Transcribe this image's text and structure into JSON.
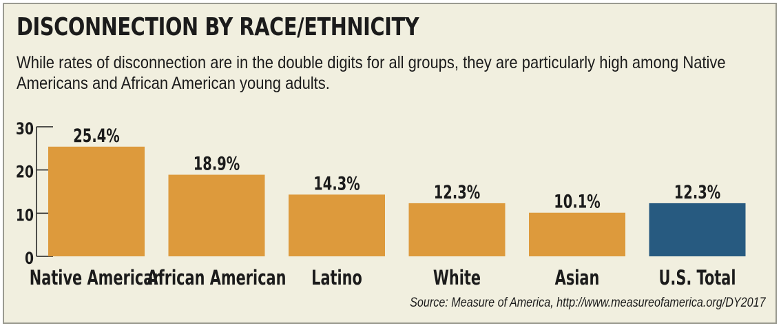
{
  "title": "DISCONNECTION BY RACE/ETHNICITY",
  "subtitle": "While rates of disconnection are in the double digits for all groups, they are particularly high among Native Americans and African American young adults.",
  "source": "Source: Measure of America, http://www.measureofamerica.org/DY2017",
  "colors": {
    "default_bar": "#dd9a3c",
    "total_bar": "#275a80",
    "background": "#f1efdf"
  },
  "chart_data": {
    "type": "bar",
    "title": "DISCONNECTION BY RACE/ETHNICITY",
    "categories": [
      "Native American",
      "African American",
      "Latino",
      "White",
      "Asian",
      "U.S. Total"
    ],
    "values": [
      25.4,
      18.9,
      14.3,
      12.3,
      10.1,
      12.3
    ],
    "value_labels": [
      "25.4%",
      "18.9%",
      "14.3%",
      "12.3%",
      "10.1%",
      "12.3%"
    ],
    "bar_colors": [
      "#dd9a3c",
      "#dd9a3c",
      "#dd9a3c",
      "#dd9a3c",
      "#dd9a3c",
      "#275a80"
    ],
    "yticks": [
      "0",
      "10",
      "20",
      "30"
    ],
    "ylim": [
      0,
      30
    ],
    "xlabel": "",
    "ylabel": "",
    "grid": false,
    "legend": "none"
  }
}
